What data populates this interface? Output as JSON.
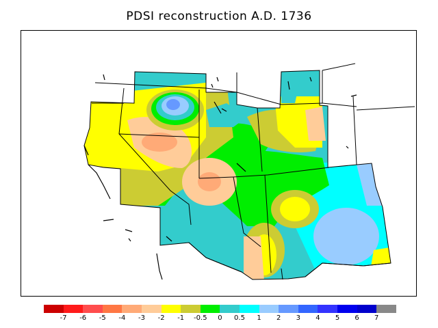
{
  "title": "PDSI reconstruction A.D. 1736",
  "legend": {
    "colors": [
      "#cc0000",
      "#ff1a1a",
      "#ff4d4d",
      "#ff7744",
      "#ffaa77",
      "#ffcc99",
      "#ffff00",
      "#cccc33",
      "#00ee00",
      "#33cccc",
      "#00ffff",
      "#99ccff",
      "#6699ff",
      "#3366ff",
      "#3333ff",
      "#0000ee",
      "#0000cc",
      "#888888"
    ],
    "tick_labels": [
      "-7",
      "-6",
      "-5",
      "-4",
      "-3",
      "-2",
      "-1",
      "-0.5",
      "0",
      "0.5",
      "1",
      "2",
      "3",
      "4",
      "5",
      "6",
      "7"
    ]
  },
  "colors": {
    "land_base": "#33cccc",
    "boundary": "#000000"
  }
}
